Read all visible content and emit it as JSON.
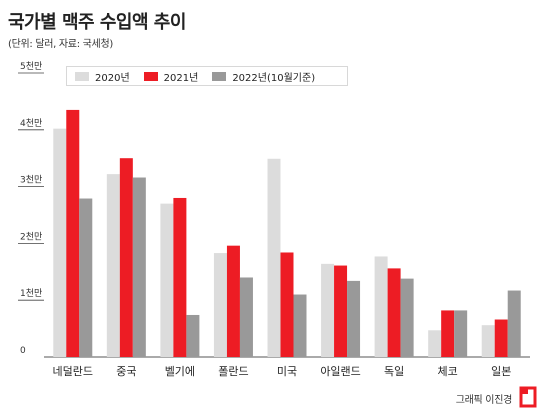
{
  "header": {
    "title": "국가별 맥주 수입액 추이",
    "subtitle": "(단위: 달러, 자료: 국세청)"
  },
  "credit": "그래픽 이진경",
  "chart_data": {
    "type": "bar",
    "title": "국가별 맥주 수입액 추이",
    "subtitle": "(단위: 달러, 자료: 국세청)",
    "categories": [
      "네덜란드",
      "중국",
      "벨기에",
      "폴란드",
      "미국",
      "아일랜드",
      "독일",
      "체코",
      "일본"
    ],
    "series": [
      {
        "name": "2020년",
        "color": "#dcdcdc",
        "values": [
          4.02,
          3.22,
          2.7,
          1.83,
          3.49,
          1.64,
          1.77,
          0.47,
          0.56
        ]
      },
      {
        "name": "2021년",
        "color": "#ed1c24",
        "values": [
          4.35,
          3.5,
          2.8,
          1.96,
          1.84,
          1.61,
          1.56,
          0.82,
          0.66
        ]
      },
      {
        "name": "2022년(10월기준)",
        "color": "#999999",
        "values": [
          2.79,
          3.16,
          0.74,
          1.4,
          1.1,
          1.34,
          1.38,
          0.82,
          1.17
        ]
      }
    ],
    "yticks": [
      "0",
      "1천만",
      "2천만",
      "3천만",
      "4천만",
      "5천만"
    ],
    "ylim": [
      0,
      5
    ],
    "grid": false,
    "legend_position": "top-left"
  }
}
